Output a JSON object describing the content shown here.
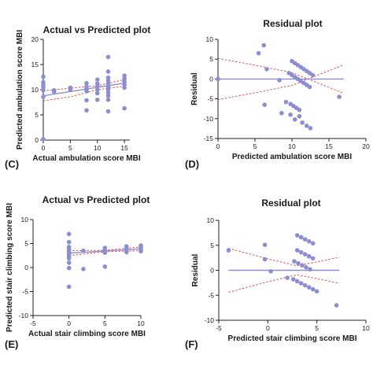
{
  "chart_data": [
    {
      "type": "scatter",
      "panel_label": "(C)",
      "title": "Actual vs Predicted plot",
      "xlabel": "Actual ambulation score MBI",
      "ylabel": "Predicted ambulation score MBI",
      "xlim": [
        0,
        16
      ],
      "ylim": [
        0,
        20
      ],
      "xticks": [
        0,
        5,
        10,
        15
      ],
      "yticks": [
        0,
        5,
        10,
        15,
        20
      ],
      "point_color": "#8b8fd1",
      "fit_color": "#8b8fd1",
      "ci_color": "#e05050",
      "fit_line": {
        "x": [
          0,
          15
        ],
        "y": [
          8.8,
          11.3
        ]
      },
      "ci_bands": [
        {
          "x": [
            0,
            5,
            10,
            15
          ],
          "y": [
            7.8,
            8.6,
            10.0,
            10.7
          ]
        },
        {
          "x": [
            0,
            5,
            10,
            15
          ],
          "y": [
            9.8,
            10.3,
            10.8,
            12.0
          ]
        }
      ],
      "points": [
        {
          "x": 0,
          "y": 12.6
        },
        {
          "x": 0,
          "y": 11.5
        },
        {
          "x": 0,
          "y": 11.0
        },
        {
          "x": 0,
          "y": 10.5
        },
        {
          "x": 0,
          "y": 9.9
        },
        {
          "x": 0,
          "y": 8.6
        },
        {
          "x": 0,
          "y": 0.2
        },
        {
          "x": 2,
          "y": 9.9
        },
        {
          "x": 2,
          "y": 9.6
        },
        {
          "x": 5,
          "y": 10.4
        },
        {
          "x": 5,
          "y": 10.0
        },
        {
          "x": 8,
          "y": 11.3
        },
        {
          "x": 8,
          "y": 10.6
        },
        {
          "x": 8,
          "y": 10.2
        },
        {
          "x": 8,
          "y": 9.7
        },
        {
          "x": 8,
          "y": 7.9
        },
        {
          "x": 8,
          "y": 5.9
        },
        {
          "x": 10,
          "y": 12.0
        },
        {
          "x": 10,
          "y": 11.2
        },
        {
          "x": 10,
          "y": 10.6
        },
        {
          "x": 10,
          "y": 10.0
        },
        {
          "x": 10,
          "y": 9.3
        },
        {
          "x": 10,
          "y": 8.0
        },
        {
          "x": 12,
          "y": 16.5
        },
        {
          "x": 12,
          "y": 13.6
        },
        {
          "x": 12,
          "y": 12.4
        },
        {
          "x": 12,
          "y": 11.8
        },
        {
          "x": 12,
          "y": 11.2
        },
        {
          "x": 12,
          "y": 10.6
        },
        {
          "x": 12,
          "y": 10.0
        },
        {
          "x": 12,
          "y": 9.4
        },
        {
          "x": 12,
          "y": 8.8
        },
        {
          "x": 12,
          "y": 8.0
        },
        {
          "x": 12,
          "y": 5.7
        },
        {
          "x": 15,
          "y": 12.8
        },
        {
          "x": 15,
          "y": 12.2
        },
        {
          "x": 15,
          "y": 11.6
        },
        {
          "x": 15,
          "y": 11.0
        },
        {
          "x": 15,
          "y": 10.4
        },
        {
          "x": 15,
          "y": 6.3
        }
      ]
    },
    {
      "type": "scatter",
      "panel_label": "(D)",
      "title": "Residual plot",
      "xlabel": "Predicted ambulation score MBI",
      "ylabel": "Residual",
      "xlim": [
        0,
        20
      ],
      "ylim": [
        -15,
        10
      ],
      "xticks": [
        0,
        5,
        10,
        15,
        20
      ],
      "yticks": [
        -15,
        -10,
        -5,
        0,
        5,
        10
      ],
      "point_color": "#8b8fd1",
      "fit_color": "#8b8fd1",
      "ci_color": "#e05050",
      "fit_line": {
        "x": [
          0,
          17
        ],
        "y": [
          0,
          0
        ]
      },
      "ci_bands": [
        {
          "x": [
            0,
            5,
            10,
            17
          ],
          "y": [
            5.2,
            3.5,
            1.6,
            -3.6
          ]
        },
        {
          "x": [
            0,
            5,
            10,
            17
          ],
          "y": [
            -5.2,
            -3.5,
            -1.6,
            3.6
          ]
        }
      ],
      "points": [
        {
          "x": 0,
          "y": 0
        },
        {
          "x": 5.5,
          "y": 6.5
        },
        {
          "x": 6.2,
          "y": 8.5
        },
        {
          "x": 6.6,
          "y": 2.5
        },
        {
          "x": 6.3,
          "y": -6.5
        },
        {
          "x": 8.3,
          "y": -0.3
        },
        {
          "x": 16.4,
          "y": -4.5
        },
        {
          "x": 10.0,
          "y": 4.5
        },
        {
          "x": 10.4,
          "y": 4.0
        },
        {
          "x": 10.8,
          "y": 3.5
        },
        {
          "x": 11.2,
          "y": 3.0
        },
        {
          "x": 11.6,
          "y": 2.5
        },
        {
          "x": 12.0,
          "y": 2.0
        },
        {
          "x": 12.4,
          "y": 1.5
        },
        {
          "x": 12.8,
          "y": 1.0
        },
        {
          "x": 9.6,
          "y": 1.5
        },
        {
          "x": 10.0,
          "y": 1.0
        },
        {
          "x": 10.4,
          "y": 0.5
        },
        {
          "x": 10.8,
          "y": 0.0
        },
        {
          "x": 11.2,
          "y": -0.5
        },
        {
          "x": 11.6,
          "y": -1.0
        },
        {
          "x": 12.0,
          "y": -1.5
        },
        {
          "x": 12.4,
          "y": -2.0
        },
        {
          "x": 9.2,
          "y": -5.8
        },
        {
          "x": 9.8,
          "y": -6.3
        },
        {
          "x": 10.2,
          "y": -6.8
        },
        {
          "x": 10.6,
          "y": -7.3
        },
        {
          "x": 11.0,
          "y": -7.8
        },
        {
          "x": 8.6,
          "y": -8.6
        },
        {
          "x": 9.8,
          "y": -9.0
        },
        {
          "x": 10.4,
          "y": -10.2
        },
        {
          "x": 11.0,
          "y": -9.4
        },
        {
          "x": 11.4,
          "y": -11.0
        },
        {
          "x": 12.0,
          "y": -11.8
        },
        {
          "x": 12.5,
          "y": -12.4
        }
      ]
    },
    {
      "type": "scatter",
      "panel_label": "(E)",
      "title": "Actual vs Predicted plot",
      "xlabel": "Actual stair climbing score MBI",
      "ylabel": "Predicted stair climbing score MBI",
      "xlim": [
        -5,
        10
      ],
      "ylim": [
        -10,
        10
      ],
      "xticks": [
        -5,
        0,
        5,
        10
      ],
      "yticks": [
        -10,
        -5,
        0,
        5,
        10
      ],
      "point_color": "#8b8fd1",
      "fit_color": "#8b8fd1",
      "ci_color": "#e05050",
      "fit_line": {
        "x": [
          0,
          10
        ],
        "y": [
          3.0,
          3.9
        ]
      },
      "ci_bands": [
        {
          "x": [
            0,
            5,
            10
          ],
          "y": [
            2.5,
            3.3,
            3.5
          ]
        },
        {
          "x": [
            0,
            5,
            10
          ],
          "y": [
            3.5,
            3.6,
            4.3
          ]
        }
      ],
      "points": [
        {
          "x": 0,
          "y": 7.0
        },
        {
          "x": 0,
          "y": 5.3
        },
        {
          "x": 0,
          "y": 4.3
        },
        {
          "x": 0,
          "y": 3.9
        },
        {
          "x": 0,
          "y": 3.5
        },
        {
          "x": 0,
          "y": 3.1
        },
        {
          "x": 0,
          "y": 2.7
        },
        {
          "x": 0,
          "y": 2.3
        },
        {
          "x": 0,
          "y": 1.9
        },
        {
          "x": 0,
          "y": 1.0
        },
        {
          "x": 0,
          "y": -0.1
        },
        {
          "x": 0,
          "y": -4.0
        },
        {
          "x": 2,
          "y": 3.5
        },
        {
          "x": 2,
          "y": -0.3
        },
        {
          "x": 5,
          "y": 4.1
        },
        {
          "x": 5,
          "y": 3.6
        },
        {
          "x": 5,
          "y": 3.1
        },
        {
          "x": 5,
          "y": 0.2
        },
        {
          "x": 8,
          "y": 4.4
        },
        {
          "x": 8,
          "y": 4.0
        },
        {
          "x": 8,
          "y": 3.6
        },
        {
          "x": 8,
          "y": 3.2
        },
        {
          "x": 10,
          "y": 4.6
        },
        {
          "x": 10,
          "y": 4.2
        },
        {
          "x": 10,
          "y": 3.8
        },
        {
          "x": 10,
          "y": 3.4
        }
      ]
    },
    {
      "type": "scatter",
      "panel_label": "(F)",
      "title": "Residual plot",
      "xlabel": "Predicted stair climbing score MBI",
      "ylabel": "Residual",
      "xlim": [
        -5,
        10
      ],
      "ylim": [
        -10,
        10
      ],
      "xticks": [
        -5,
        0,
        5,
        10
      ],
      "yticks": [
        -10,
        -5,
        0,
        5,
        10
      ],
      "point_color": "#8b8fd1",
      "fit_color": "#8b8fd1",
      "ci_color": "#e05050",
      "fit_line": {
        "x": [
          -4,
          7.3
        ],
        "y": [
          0,
          0
        ]
      },
      "ci_bands": [
        {
          "x": [
            -4,
            0,
            3,
            7.3
          ],
          "y": [
            4.4,
            2.3,
            0.9,
            2.6
          ]
        },
        {
          "x": [
            -4,
            0,
            3,
            7.3
          ],
          "y": [
            -4.4,
            -2.3,
            -0.9,
            -2.6
          ]
        }
      ],
      "points": [
        {
          "x": -4.0,
          "y": 4.0
        },
        {
          "x": -0.3,
          "y": 5.1
        },
        {
          "x": -0.3,
          "y": 2.2
        },
        {
          "x": 0.3,
          "y": -0.2
        },
        {
          "x": 2.0,
          "y": -1.5
        },
        {
          "x": 7.0,
          "y": -7.0
        },
        {
          "x": 3.0,
          "y": 7.0
        },
        {
          "x": 3.4,
          "y": 6.6
        },
        {
          "x": 3.8,
          "y": 6.2
        },
        {
          "x": 4.2,
          "y": 5.8
        },
        {
          "x": 4.6,
          "y": 5.4
        },
        {
          "x": 3.0,
          "y": 4.0
        },
        {
          "x": 3.4,
          "y": 3.6
        },
        {
          "x": 3.8,
          "y": 3.2
        },
        {
          "x": 4.2,
          "y": 2.8
        },
        {
          "x": 4.6,
          "y": 2.4
        },
        {
          "x": 2.7,
          "y": 1.8
        },
        {
          "x": 3.1,
          "y": 1.4
        },
        {
          "x": 3.5,
          "y": 1.0
        },
        {
          "x": 3.9,
          "y": 0.6
        },
        {
          "x": 4.3,
          "y": 0.2
        },
        {
          "x": 2.6,
          "y": -1.8
        },
        {
          "x": 3.0,
          "y": -2.2
        },
        {
          "x": 3.4,
          "y": -2.6
        },
        {
          "x": 3.8,
          "y": -3.0
        },
        {
          "x": 4.2,
          "y": -3.4
        },
        {
          "x": 4.6,
          "y": -3.8
        },
        {
          "x": 5.0,
          "y": -4.2
        }
      ]
    }
  ]
}
